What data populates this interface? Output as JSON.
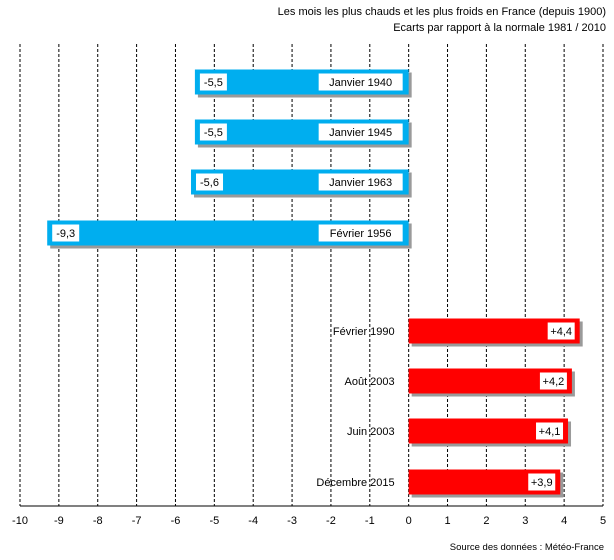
{
  "chart_data": {
    "type": "bar",
    "orientation": "horizontal",
    "title": "Les mois les plus chauds et les plus froids en France (depuis 1900)",
    "subtitle": "Ecarts  par rapport à la normale 1981 / 2010",
    "source": "Source des données : Météo-France",
    "xlim": [
      -10,
      5
    ],
    "x_ticks": [
      "-10",
      "-9",
      "-8",
      "-7",
      "-6",
      "-5",
      "-4",
      "-3",
      "-2",
      "-1",
      "0",
      "1",
      "2",
      "3",
      "4",
      "5"
    ],
    "grid": true,
    "categories": [
      "Janvier 1940",
      "Janvier 1945",
      "Janvier 1963",
      "Février 1956",
      "Février 1990",
      "Août 2003",
      "Juin 2003",
      "Décembre 2015"
    ],
    "values": [
      -5.5,
      -5.5,
      -5.6,
      -9.3,
      4.4,
      4.2,
      4.1,
      3.9
    ],
    "value_labels": [
      "-5,5",
      "-5,5",
      "-5,6",
      "-9,3",
      "+4,4",
      "+4,2",
      "+4,1",
      "+3,9"
    ],
    "colors": {
      "cold": "#00AEEF",
      "warm": "#FF0000",
      "grid": "#000000"
    }
  }
}
